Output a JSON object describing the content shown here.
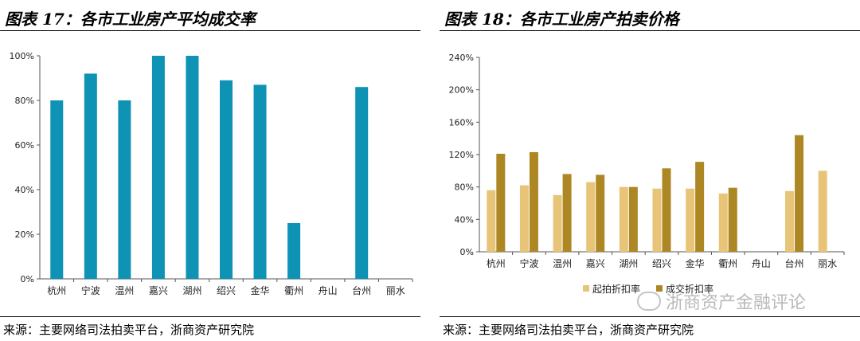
{
  "left": {
    "title": "图表 17：各市工业房产平均成交率",
    "source": "来源：主要网络司法拍卖平台，浙商资产研究院"
  },
  "right": {
    "title": "图表 18：各市工业房产拍卖价格",
    "source": "来源：主要网络司法拍卖平台，浙商资产研究院",
    "watermark": "浙商资产金融评论"
  },
  "colors": {
    "left_bar": "#0e93b5",
    "start_ratio": "#e8c478",
    "deal_ratio": "#ad8724"
  },
  "chart_data": [
    {
      "type": "bar",
      "categories": [
        "杭州",
        "宁波",
        "温州",
        "嘉兴",
        "湖州",
        "绍兴",
        "金华",
        "衢州",
        "舟山",
        "台州",
        "丽水"
      ],
      "values": [
        80,
        92,
        80,
        100,
        100,
        89,
        87,
        25,
        null,
        86,
        null
      ],
      "ylim": [
        0,
        100
      ],
      "yticks": [
        "0%",
        "20%",
        "40%",
        "60%",
        "80%",
        "100%"
      ],
      "grid": false
    },
    {
      "type": "bar",
      "categories": [
        "杭州",
        "宁波",
        "温州",
        "嘉兴",
        "湖州",
        "绍兴",
        "金华",
        "衢州",
        "舟山",
        "台州",
        "丽水"
      ],
      "series": [
        {
          "name": "起拍折扣率",
          "values": [
            76,
            82,
            70,
            86,
            80,
            78,
            78,
            72,
            null,
            75,
            100
          ]
        },
        {
          "name": "成交折扣率",
          "values": [
            121,
            123,
            96,
            95,
            80,
            103,
            111,
            79,
            null,
            144,
            null
          ]
        }
      ],
      "ylim": [
        0,
        240
      ],
      "yticks": [
        "0%",
        "40%",
        "80%",
        "120%",
        "160%",
        "200%",
        "240%"
      ],
      "legend": "bottom",
      "grid": false
    }
  ]
}
